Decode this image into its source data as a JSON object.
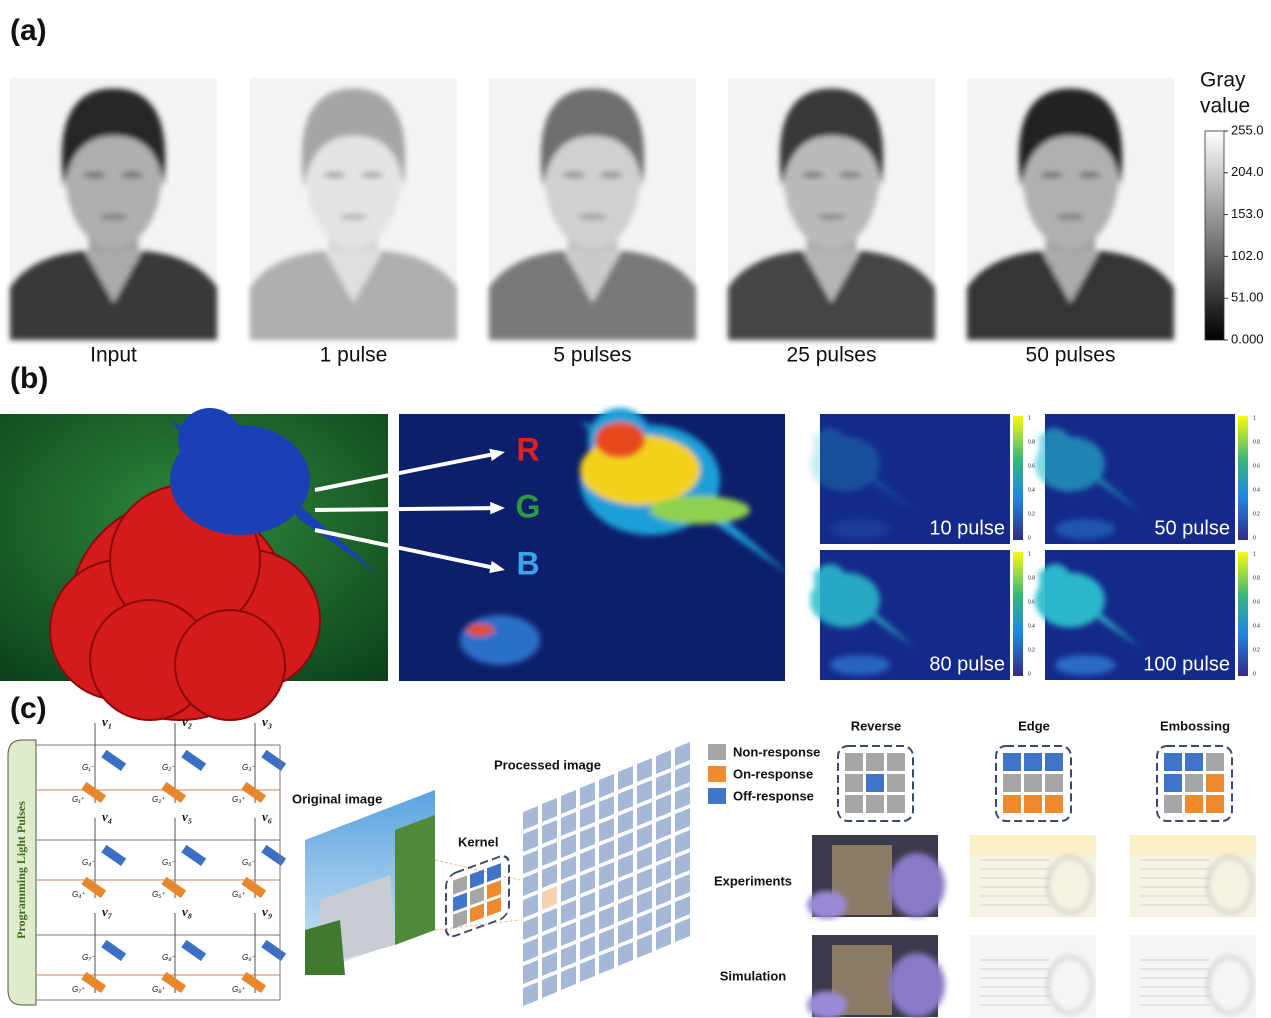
{
  "panel_a": {
    "label": "(a)",
    "captions": [
      "Input",
      "1 pulse",
      "5 pulses",
      "25 pulses",
      "50 pulses"
    ],
    "colorbar_title": [
      "Gray",
      "value"
    ],
    "colorbar_ticks": [
      "255.0",
      "204.0",
      "153.0",
      "102.0",
      "51.00",
      "0.000"
    ]
  },
  "panel_b": {
    "label": "(b)",
    "channels": [
      "R",
      "G",
      "B"
    ],
    "pulse_maps": [
      "10 pulse",
      "50 pulse",
      "80 pulse",
      "100 pulse"
    ],
    "colorbar_ticks": [
      "1",
      "0.8",
      "0.6",
      "0.4",
      "0.2",
      "0"
    ]
  },
  "panel_c": {
    "label": "(c)",
    "side_label": "Programming Light Pulses",
    "voltages": [
      "v₁",
      "v₂",
      "v₃",
      "v₄",
      "v₅",
      "v₆",
      "v₇",
      "v₈",
      "v₉"
    ],
    "g_minus": [
      "G₁⁻",
      "G₂⁻",
      "G₃⁻",
      "G₄⁻",
      "G₅⁻",
      "G₆⁻",
      "G₇⁻",
      "G₈⁻",
      "G₉⁻"
    ],
    "g_plus": [
      "G₁⁺",
      "G₂⁺",
      "G₃⁺",
      "G₄⁺",
      "G₅⁺",
      "G₆⁺",
      "G₇⁺",
      "G₈⁺",
      "G₉⁺"
    ],
    "original_image": "Original image",
    "kernel": "Kernel",
    "processed_image": "Processed image",
    "legend": [
      "Non-response",
      "On-response",
      "Off-response"
    ],
    "kernels": [
      "Reverse",
      "Edge",
      "Embossing"
    ],
    "rows": [
      "Experiments",
      "Simulation"
    ]
  }
}
